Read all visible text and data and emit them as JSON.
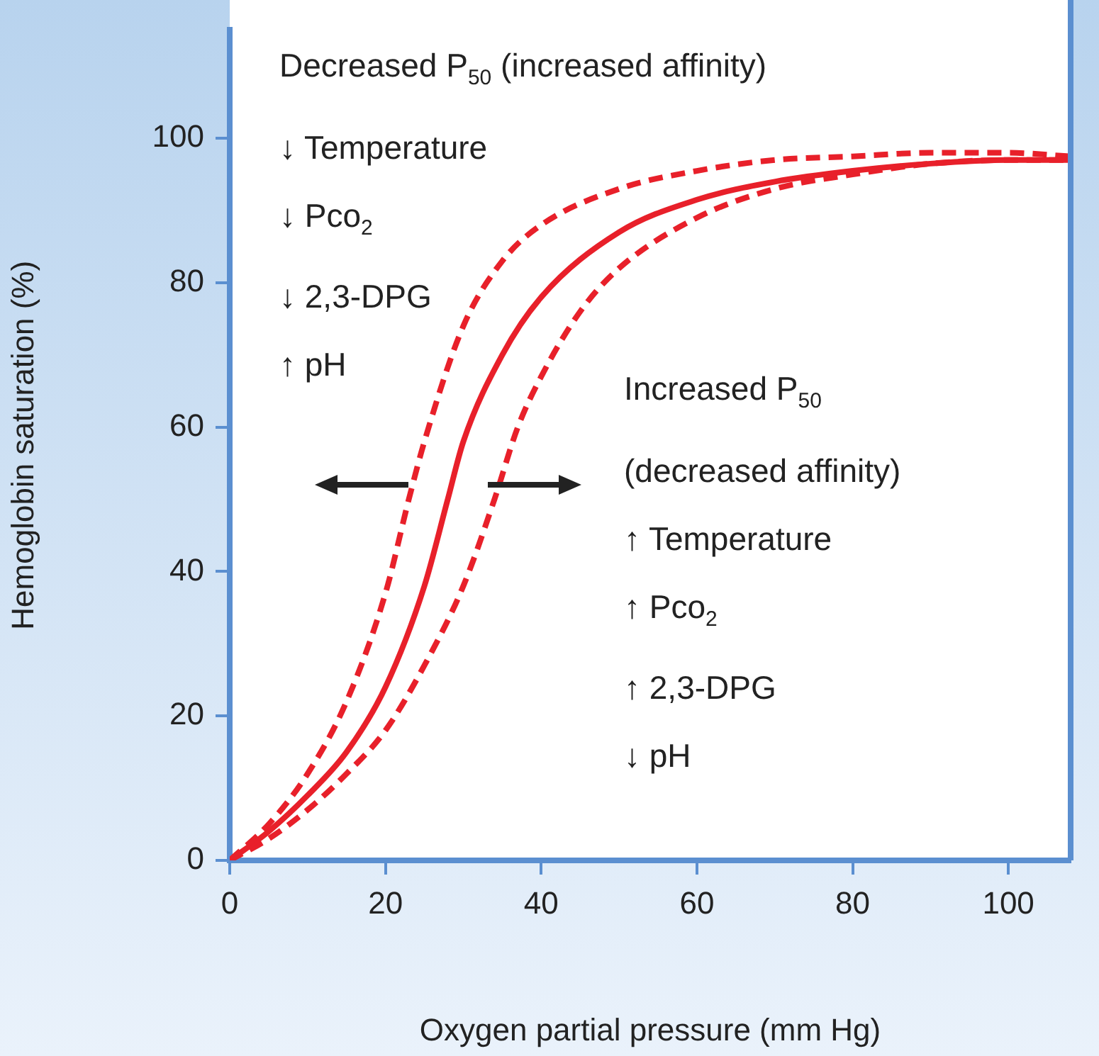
{
  "chart_data": {
    "type": "line",
    "xlabel": "Oxygen partial pressure (mm Hg)",
    "ylabel": "Hemoglobin saturation (%)",
    "xlim": [
      0,
      108
    ],
    "xticks": [
      0,
      20,
      40,
      60,
      80,
      100
    ],
    "ylim": [
      0,
      115
    ],
    "yticks": [
      0,
      20,
      40,
      60,
      80,
      100
    ],
    "grid": false,
    "legend": false,
    "marker": "none",
    "annotations": [
      "Decreased P$_{50}$ (increased affinity)\n↓ Temperature\n↓ Pco$_{2}$\n↓ 2,3-DPG\n↑ pH",
      "Increased P$_{50}$\n(decreased affinity)\n↑ Temperature\n↑ Pco$_{2}$\n↑ 2,3-DPG\n↓ pH"
    ],
    "series": [
      {
        "color": "#e8202a",
        "line_style": "dashed",
        "x": [
          0,
          5,
          10,
          15,
          20,
          23,
          25,
          30,
          35,
          40,
          50,
          60,
          70,
          80,
          90,
          100,
          108
        ],
        "values": [
          0,
          5,
          12,
          22,
          37,
          50,
          58,
          74,
          83,
          88,
          93,
          95.5,
          97,
          97.5,
          98,
          98,
          97.5
        ]
      },
      {
        "color": "#e8202a",
        "line_style": "solid",
        "x": [
          0,
          5,
          10,
          15,
          20,
          25,
          28,
          30,
          35,
          40,
          50,
          60,
          70,
          80,
          90,
          100,
          108
        ],
        "values": [
          0,
          4,
          9,
          15,
          24,
          38,
          50,
          58,
          70,
          78,
          87,
          91.5,
          94,
          95.5,
          96.5,
          97,
          97
        ]
      },
      {
        "color": "#e8202a",
        "line_style": "dashed",
        "x": [
          0,
          5,
          10,
          15,
          20,
          25,
          30,
          34,
          37,
          40,
          45,
          50,
          60,
          70,
          80,
          90,
          100,
          108
        ],
        "values": [
          0,
          3,
          7,
          12,
          18,
          27,
          38,
          50,
          60,
          67,
          76,
          82,
          89,
          93,
          95,
          96.5,
          97,
          97
        ]
      }
    ]
  }
}
